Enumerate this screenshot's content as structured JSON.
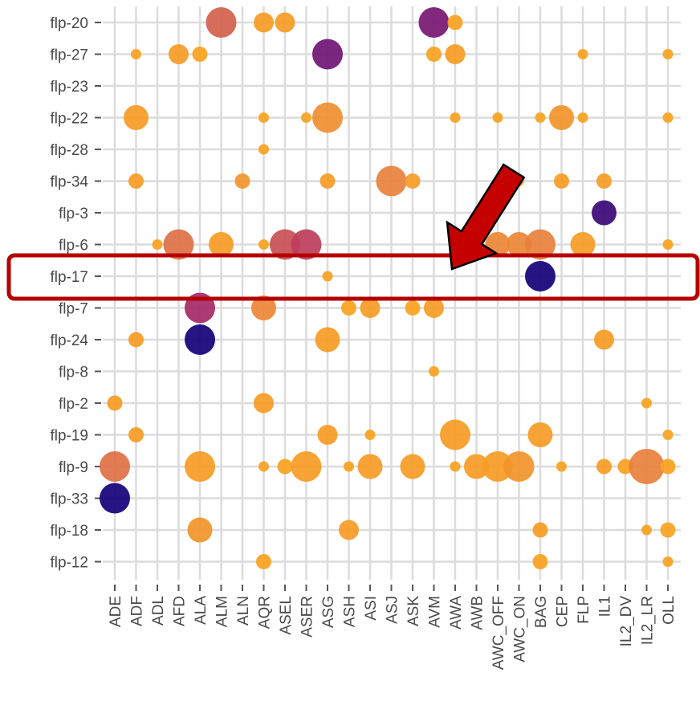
{
  "chart_data": {
    "type": "scatter",
    "subtype": "dot-plot",
    "x_categories": [
      "ADE",
      "ADF",
      "ADL",
      "AFD",
      "ALA",
      "ALM",
      "ALN",
      "AQR",
      "ASEL",
      "ASER",
      "ASG",
      "ASH",
      "ASI",
      "ASJ",
      "ASK",
      "AVM",
      "AWA",
      "AWB",
      "AWC_OFF",
      "AWC_ON",
      "BAG",
      "CEP",
      "FLP",
      "IL1",
      "IL2_DV",
      "IL2_LR",
      "OLL"
    ],
    "y_categories": [
      "flp-20",
      "flp-27",
      "flp-23",
      "flp-22",
      "flp-28",
      "flp-34",
      "flp-3",
      "flp-6",
      "flp-17",
      "flp-7",
      "flp-24",
      "flp-8",
      "flp-2",
      "flp-19",
      "flp-9",
      "flp-33",
      "flp-18",
      "flp-12"
    ],
    "size_scale": "radius 1-6",
    "color_scale": "0 = orange (#f9a21e), 1 = dark purple (#140078)",
    "points": [
      {
        "x": "ALM",
        "y": "flp-20",
        "size": 5,
        "color": 0.35
      },
      {
        "x": "AQR",
        "y": "flp-20",
        "size": 3,
        "color": 0.05
      },
      {
        "x": "ASEL",
        "y": "flp-20",
        "size": 3,
        "color": 0.05
      },
      {
        "x": "AVM",
        "y": "flp-20",
        "size": 5,
        "color": 0.72
      },
      {
        "x": "AWA",
        "y": "flp-20",
        "size": 2,
        "color": 0.0
      },
      {
        "x": "ADF",
        "y": "flp-27",
        "size": 1,
        "color": 0.0
      },
      {
        "x": "AFD",
        "y": "flp-27",
        "size": 3,
        "color": 0.05
      },
      {
        "x": "ALA",
        "y": "flp-27",
        "size": 2,
        "color": 0.0
      },
      {
        "x": "ASG",
        "y": "flp-27",
        "size": 5,
        "color": 0.75
      },
      {
        "x": "AVM",
        "y": "flp-27",
        "size": 2,
        "color": 0.0
      },
      {
        "x": "AWA",
        "y": "flp-27",
        "size": 3,
        "color": 0.05
      },
      {
        "x": "FLP",
        "y": "flp-27",
        "size": 1,
        "color": 0.0
      },
      {
        "x": "OLL",
        "y": "flp-27",
        "size": 1,
        "color": 0.0
      },
      {
        "x": "ADF",
        "y": "flp-22",
        "size": 4,
        "color": 0.05
      },
      {
        "x": "AQR",
        "y": "flp-22",
        "size": 1,
        "color": 0.0
      },
      {
        "x": "ASER",
        "y": "flp-22",
        "size": 1,
        "color": 0.0
      },
      {
        "x": "ASG",
        "y": "flp-22",
        "size": 5,
        "color": 0.15
      },
      {
        "x": "AWA",
        "y": "flp-22",
        "size": 1,
        "color": 0.0
      },
      {
        "x": "AWC_OFF",
        "y": "flp-22",
        "size": 1,
        "color": 0.0
      },
      {
        "x": "BAG",
        "y": "flp-22",
        "size": 1,
        "color": 0.0
      },
      {
        "x": "CEP",
        "y": "flp-22",
        "size": 4,
        "color": 0.1
      },
      {
        "x": "FLP",
        "y": "flp-22",
        "size": 1,
        "color": 0.0
      },
      {
        "x": "OLL",
        "y": "flp-22",
        "size": 1,
        "color": 0.0
      },
      {
        "x": "AQR",
        "y": "flp-28",
        "size": 1,
        "color": 0.0
      },
      {
        "x": "ADF",
        "y": "flp-34",
        "size": 2,
        "color": 0.05
      },
      {
        "x": "ALN",
        "y": "flp-34",
        "size": 2,
        "color": 0.1
      },
      {
        "x": "ASG",
        "y": "flp-34",
        "size": 2,
        "color": 0.05
      },
      {
        "x": "ASJ",
        "y": "flp-34",
        "size": 5,
        "color": 0.25
      },
      {
        "x": "ASK",
        "y": "flp-34",
        "size": 2,
        "color": 0.05
      },
      {
        "x": "AWC_ON",
        "y": "flp-34",
        "size": 1,
        "color": 0.0
      },
      {
        "x": "CEP",
        "y": "flp-34",
        "size": 2,
        "color": 0.05
      },
      {
        "x": "IL1",
        "y": "flp-34",
        "size": 2,
        "color": 0.05
      },
      {
        "x": "IL1",
        "y": "flp-3",
        "size": 4,
        "color": 0.9
      },
      {
        "x": "ADL",
        "y": "flp-6",
        "size": 1,
        "color": 0.0
      },
      {
        "x": "AFD",
        "y": "flp-6",
        "size": 5,
        "color": 0.3
      },
      {
        "x": "ALM",
        "y": "flp-6",
        "size": 4,
        "color": 0.05
      },
      {
        "x": "AQR",
        "y": "flp-6",
        "size": 1,
        "color": 0.0
      },
      {
        "x": "ASEL",
        "y": "flp-6",
        "size": 5,
        "color": 0.4
      },
      {
        "x": "ASER",
        "y": "flp-6",
        "size": 5,
        "color": 0.45
      },
      {
        "x": "AWC_OFF",
        "y": "flp-6",
        "size": 4,
        "color": 0.2
      },
      {
        "x": "AWC_ON",
        "y": "flp-6",
        "size": 4,
        "color": 0.2
      },
      {
        "x": "BAG",
        "y": "flp-6",
        "size": 5,
        "color": 0.25
      },
      {
        "x": "FLP",
        "y": "flp-6",
        "size": 4,
        "color": 0.05
      },
      {
        "x": "OLL",
        "y": "flp-6",
        "size": 1,
        "color": 0.0
      },
      {
        "x": "ASG",
        "y": "flp-17",
        "size": 1,
        "color": 0.0
      },
      {
        "x": "BAG",
        "y": "flp-17",
        "size": 5,
        "color": 1.0
      },
      {
        "x": "ALA",
        "y": "flp-7",
        "size": 5,
        "color": 0.55
      },
      {
        "x": "AQR",
        "y": "flp-7",
        "size": 4,
        "color": 0.2
      },
      {
        "x": "ASH",
        "y": "flp-7",
        "size": 2,
        "color": 0.0
      },
      {
        "x": "ASI",
        "y": "flp-7",
        "size": 3,
        "color": 0.05
      },
      {
        "x": "ASK",
        "y": "flp-7",
        "size": 2,
        "color": 0.0
      },
      {
        "x": "AVM",
        "y": "flp-7",
        "size": 3,
        "color": 0.05
      },
      {
        "x": "ADF",
        "y": "flp-24",
        "size": 2,
        "color": 0.05
      },
      {
        "x": "ALA",
        "y": "flp-24",
        "size": 5,
        "color": 1.0
      },
      {
        "x": "ASG",
        "y": "flp-24",
        "size": 4,
        "color": 0.05
      },
      {
        "x": "IL1",
        "y": "flp-24",
        "size": 3,
        "color": 0.05
      },
      {
        "x": "AVM",
        "y": "flp-8",
        "size": 1,
        "color": 0.0
      },
      {
        "x": "ADE",
        "y": "flp-2",
        "size": 2,
        "color": 0.05
      },
      {
        "x": "AQR",
        "y": "flp-2",
        "size": 3,
        "color": 0.05
      },
      {
        "x": "IL2_LR",
        "y": "flp-2",
        "size": 1,
        "color": 0.0
      },
      {
        "x": "ADF",
        "y": "flp-19",
        "size": 2,
        "color": 0.05
      },
      {
        "x": "ASG",
        "y": "flp-19",
        "size": 3,
        "color": 0.05
      },
      {
        "x": "ASI",
        "y": "flp-19",
        "size": 1,
        "color": 0.0
      },
      {
        "x": "AWA",
        "y": "flp-19",
        "size": 5,
        "color": 0.05
      },
      {
        "x": "BAG",
        "y": "flp-19",
        "size": 4,
        "color": 0.05
      },
      {
        "x": "OLL",
        "y": "flp-19",
        "size": 1,
        "color": 0.0
      },
      {
        "x": "ADE",
        "y": "flp-9",
        "size": 5,
        "color": 0.3
      },
      {
        "x": "ALA",
        "y": "flp-9",
        "size": 5,
        "color": 0.05
      },
      {
        "x": "AQR",
        "y": "flp-9",
        "size": 1,
        "color": 0.0
      },
      {
        "x": "ASEL",
        "y": "flp-9",
        "size": 2,
        "color": 0.0
      },
      {
        "x": "ASER",
        "y": "flp-9",
        "size": 5,
        "color": 0.05
      },
      {
        "x": "ASH",
        "y": "flp-9",
        "size": 1,
        "color": 0.0
      },
      {
        "x": "ASI",
        "y": "flp-9",
        "size": 4,
        "color": 0.05
      },
      {
        "x": "ASK",
        "y": "flp-9",
        "size": 4,
        "color": 0.05
      },
      {
        "x": "AWA",
        "y": "flp-9",
        "size": 1,
        "color": 0.0
      },
      {
        "x": "AWB",
        "y": "flp-9",
        "size": 4,
        "color": 0.05
      },
      {
        "x": "AWC_OFF",
        "y": "flp-9",
        "size": 5,
        "color": 0.05
      },
      {
        "x": "AWC_ON",
        "y": "flp-9",
        "size": 5,
        "color": 0.1
      },
      {
        "x": "CEP",
        "y": "flp-9",
        "size": 1,
        "color": 0.0
      },
      {
        "x": "IL1",
        "y": "flp-9",
        "size": 2,
        "color": 0.05
      },
      {
        "x": "IL2_DV",
        "y": "flp-9",
        "size": 2,
        "color": 0.0
      },
      {
        "x": "IL2_LR",
        "y": "flp-9",
        "size": 6,
        "color": 0.25
      },
      {
        "x": "OLL",
        "y": "flp-9",
        "size": 2,
        "color": 0.0
      },
      {
        "x": "ADE",
        "y": "flp-33",
        "size": 5,
        "color": 1.0
      },
      {
        "x": "ALA",
        "y": "flp-18",
        "size": 4,
        "color": 0.1
      },
      {
        "x": "ASH",
        "y": "flp-18",
        "size": 3,
        "color": 0.05
      },
      {
        "x": "BAG",
        "y": "flp-18",
        "size": 2,
        "color": 0.05
      },
      {
        "x": "IL2_LR",
        "y": "flp-18",
        "size": 1,
        "color": 0.0
      },
      {
        "x": "OLL",
        "y": "flp-18",
        "size": 2,
        "color": 0.0
      },
      {
        "x": "AQR",
        "y": "flp-12",
        "size": 2,
        "color": 0.0
      },
      {
        "x": "BAG",
        "y": "flp-12",
        "size": 2,
        "color": 0.0
      },
      {
        "x": "OLL",
        "y": "flp-12",
        "size": 1,
        "color": 0.0
      }
    ],
    "grid": true,
    "title": "",
    "xlabel": "",
    "ylabel": ""
  },
  "highlight": {
    "row": "flp-17",
    "box_color": "#b50000",
    "arrow_color": "#c40000",
    "arrow_border": "#000000"
  }
}
